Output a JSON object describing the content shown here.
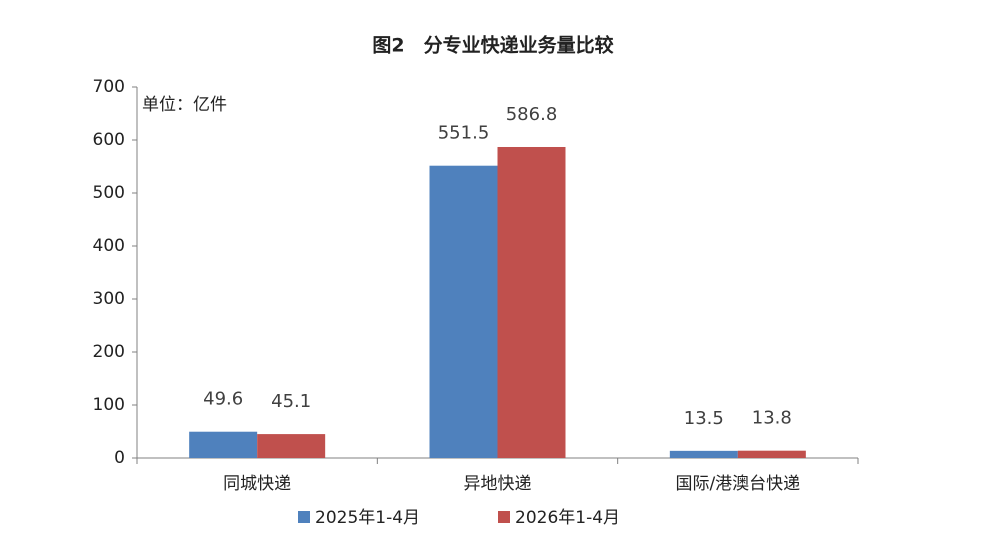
{
  "chart_data": {
    "type": "bar",
    "title": "图2　分专业快递业务量比较",
    "annotation": "单位：亿件",
    "categories": [
      "同城快递",
      "异地快递",
      "国际/港澳台快递"
    ],
    "series": [
      {
        "name": "2025年1-4月",
        "color": "#4f81bd",
        "values": [
          49.6,
          551.5,
          13.5
        ]
      },
      {
        "name": "2026年1-4月",
        "color": "#c0504d",
        "values": [
          45.1,
          586.8,
          13.8
        ]
      }
    ],
    "ylim": [
      0,
      700
    ],
    "yticks": [
      0,
      100,
      200,
      300,
      400,
      500,
      600,
      700
    ],
    "grid": false,
    "legend": "bottom"
  }
}
